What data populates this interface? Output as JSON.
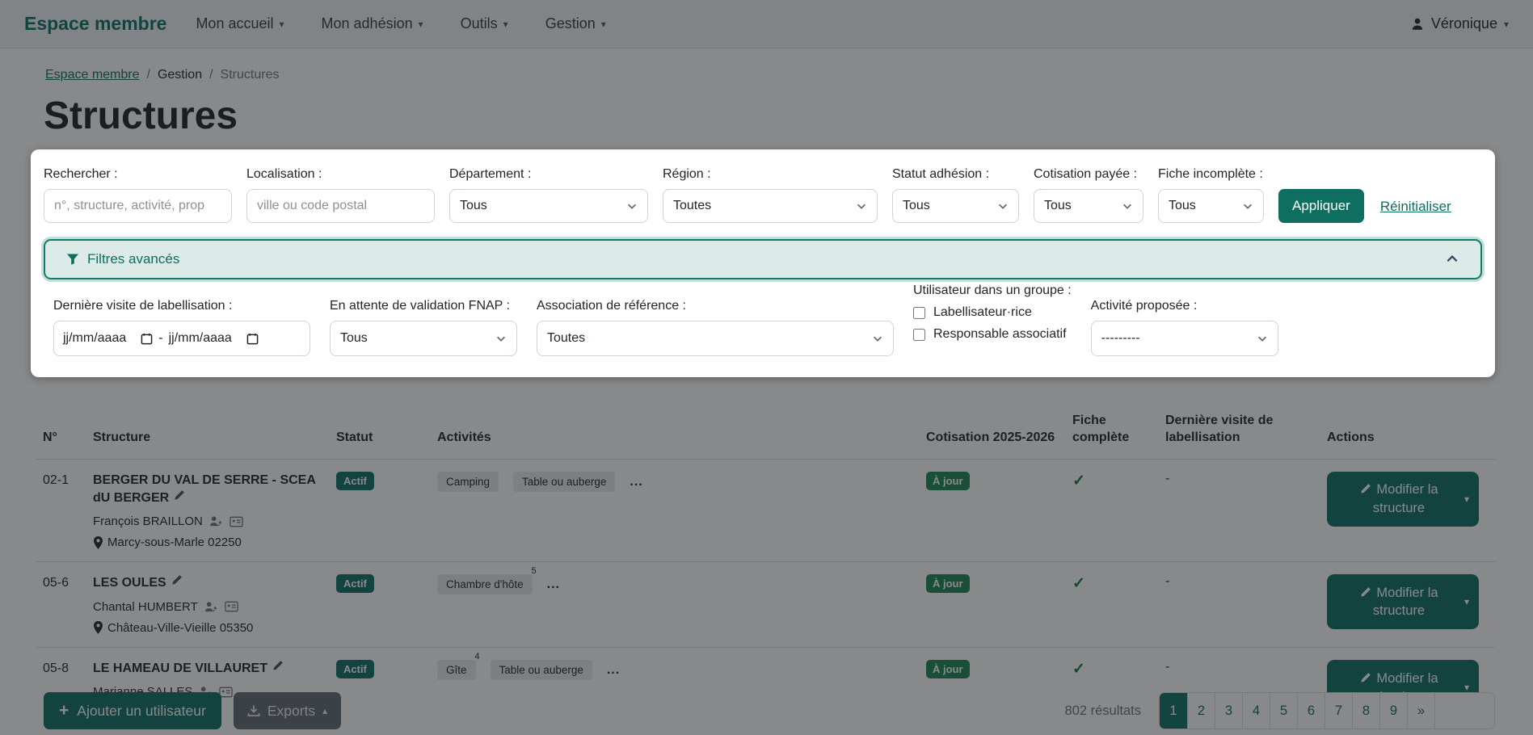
{
  "colors": {
    "accent": "#0e6e5f",
    "success": "#198754",
    "chip_bg": "#e9ecef",
    "advanced_bg": "#dcebe7"
  },
  "icons": {
    "caret_down": "▾",
    "caret_up": "▴",
    "more": "...",
    "check": "✓",
    "plus": "+",
    "dash": "-"
  },
  "navbar": {
    "brand": "Espace membre",
    "items": [
      {
        "label": "Mon accueil"
      },
      {
        "label": "Mon adhésion"
      },
      {
        "label": "Outils"
      },
      {
        "label": "Gestion"
      }
    ],
    "user": "Véronique"
  },
  "breadcrumb": {
    "separator": "/",
    "items": [
      "Espace membre",
      "Gestion",
      "Structures"
    ]
  },
  "page": {
    "title": "Structures"
  },
  "filters": {
    "search_label": "Rechercher :",
    "search_placeholder": "n°, structure, activité, prop",
    "localisation_label": "Localisation :",
    "localisation_placeholder": "ville ou code postal",
    "departement_label": "Département :",
    "departement_value": "Tous",
    "region_label": "Région :",
    "region_value": "Toutes",
    "statut_label": "Statut adhésion :",
    "statut_value": "Tous",
    "cotisation_label": "Cotisation payée :",
    "cotisation_value": "Tous",
    "fiche_label": "Fiche incomplète :",
    "fiche_value": "Tous",
    "apply_label": "Appliquer",
    "reset_label": "Réinitialiser"
  },
  "advanced": {
    "header": "Filtres avancés",
    "derniere_visite_label": "Dernière visite de labellisation :",
    "date_from_placeholder": "jj/mm/aaaa",
    "date_to_placeholder": "jj/mm/aaaa",
    "date_separator": "-",
    "fnap_label": "En attente de validation FNAP :",
    "fnap_value": "Tous",
    "association_label": "Association de référence :",
    "association_value": "Toutes",
    "groupe_label": "Utilisateur dans un groupe :",
    "checkboxes": [
      {
        "label": "Labellisateur·rice",
        "checked": false
      },
      {
        "label": "Responsable associatif",
        "checked": false
      }
    ],
    "activite_label": "Activité proposée :",
    "activite_value": "---------"
  },
  "table": {
    "headers": [
      "N°",
      "Structure",
      "Statut",
      "Activités",
      "Cotisation 2025-2026",
      "Fiche complète",
      "Dernière visite de labellisation",
      "Actions"
    ],
    "rows": [
      {
        "num": "02-1",
        "name": "BERGER DU VAL DE SERRE - SCEA dU BERGER",
        "owner": "François BRAILLON",
        "location": "Marcy-sous-Marle 02250",
        "statut": "Actif",
        "activites": [
          {
            "label": "Camping",
            "count": ""
          },
          {
            "label": "Table ou auberge",
            "count": ""
          }
        ],
        "cotisation": "À jour",
        "fiche_complete": true,
        "derniere_visite": "-",
        "action": "Modifier la structure"
      },
      {
        "num": "05-6",
        "name": "LES OULES",
        "owner": "Chantal HUMBERT",
        "location": "Château-Ville-Vieille 05350",
        "statut": "Actif",
        "activites": [
          {
            "label": "Chambre d'hôte",
            "count": "5"
          }
        ],
        "cotisation": "À jour",
        "fiche_complete": true,
        "derniere_visite": "-",
        "action": "Modifier la structure"
      },
      {
        "num": "05-8",
        "name": "LE HAMEAU DE VILLAURET",
        "owner": "Marianne SALLES",
        "location": "",
        "statut": "Actif",
        "activites": [
          {
            "label": "Gîte",
            "count": "4"
          },
          {
            "label": "Table ou auberge",
            "count": ""
          }
        ],
        "cotisation": "À jour",
        "fiche_complete": true,
        "derniere_visite": "-",
        "action": "Modifier la structure"
      }
    ]
  },
  "footer": {
    "add_user_label": "Ajouter un utilisateur",
    "exports_label": "Exports",
    "results": "802 résultats",
    "pages": [
      "1",
      "2",
      "3",
      "4",
      "5",
      "6",
      "7",
      "8",
      "9",
      "»",
      ""
    ],
    "active_page": "1"
  }
}
